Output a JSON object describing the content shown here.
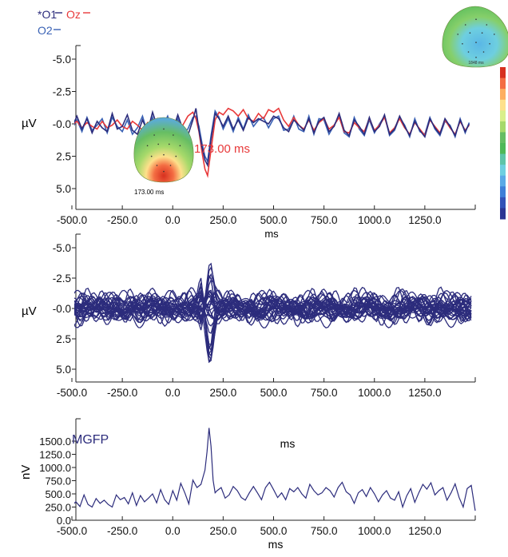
{
  "colors": {
    "O1": "#2c2c7c",
    "Oz": "#e8393a",
    "O2": "#3a62b5",
    "butterfly": "#2c2c7c",
    "mgfp": "#2c2c7c",
    "axis": "#222222",
    "scale": [
      "#d7301f",
      "#f46d43",
      "#fdae61",
      "#fee08b",
      "#d9ef8b",
      "#a6d96a",
      "#66bd63",
      "#4fb858",
      "#5ec4a8",
      "#6ecfe0",
      "#5aa9e6",
      "#3f7fd8",
      "#3352b8",
      "#2c3594"
    ]
  },
  "legend": {
    "o1": "*O1",
    "oz": "Oz",
    "o2": "O2"
  },
  "topomaps": {
    "small_label": "1848 ms",
    "peak_label": "173.00 ms"
  },
  "chart_data": [
    {
      "type": "line",
      "panel": "channels",
      "xlabel": "ms",
      "ylabel": "µV",
      "x_ticks": [
        "-500.0",
        "-250.0",
        "0.0",
        "250.0",
        "500.0",
        "750.0",
        "1000.0",
        "1250.0"
      ],
      "x_tick_values": [
        -500,
        -250,
        0,
        250,
        500,
        750,
        1000,
        1250
      ],
      "y_ticks": [
        "-5.0",
        "-2.5",
        "-0.0",
        "2.5",
        "5.0"
      ],
      "y_tick_values": [
        -5,
        -2.5,
        0,
        2.5,
        5
      ],
      "xlim": [
        -500,
        1480
      ],
      "ylim": [
        -5,
        5
      ],
      "y_inverted": false,
      "annotation": "173.00 ms",
      "annotation_x": 173,
      "series": [
        {
          "name": "O1",
          "x": [
            -500,
            -475,
            -450,
            -425,
            -400,
            -375,
            -350,
            -325,
            -300,
            -275,
            -250,
            -225,
            -200,
            -175,
            -150,
            -125,
            -100,
            -75,
            -50,
            -25,
            0,
            25,
            50,
            75,
            100,
            115,
            130,
            145,
            160,
            173,
            190,
            210,
            230,
            250,
            275,
            300,
            325,
            350,
            375,
            400,
            425,
            450,
            475,
            500,
            525,
            550,
            575,
            600,
            625,
            650,
            675,
            700,
            725,
            750,
            775,
            800,
            825,
            850,
            875,
            900,
            925,
            950,
            975,
            1000,
            1025,
            1050,
            1075,
            1100,
            1125,
            1150,
            1175,
            1200,
            1225,
            1250,
            1275,
            1300,
            1325,
            1350,
            1375,
            1400,
            1425,
            1450,
            1470
          ],
          "values": [
            0.3,
            -0.6,
            0.4,
            -0.4,
            0.7,
            -0.2,
            0.3,
            0.6,
            -0.8,
            0.4,
            0.2,
            -0.7,
            0.5,
            0.8,
            -0.3,
            0.6,
            -0.9,
            0.3,
            0.7,
            -0.4,
            0.5,
            -0.7,
            0.4,
            0.9,
            -0.3,
            -1.2,
            0.5,
            1.8,
            2.8,
            3.2,
            1.2,
            -0.8,
            -0.4,
            0.2,
            -0.6,
            0.4,
            -0.3,
            0.5,
            -0.5,
            -0.1,
            -0.4,
            -0.2,
            0.0,
            -0.6,
            -0.4,
            0.3,
            0.6,
            -0.3,
            0.1,
            0.5,
            -0.4,
            0.7,
            -0.2,
            -0.5,
            0.6,
            0.2,
            -0.8,
            0.5,
            0.9,
            -0.3,
            0.2,
            0.8,
            -0.5,
            0.6,
            0.2,
            -0.7,
            0.8,
            0.4,
            -0.6,
            0.2,
            0.9,
            -0.2,
            0.5,
            1.0,
            -0.4,
            0.3,
            0.8,
            -0.4,
            0.2,
            0.9,
            -0.3,
            0.6,
            0.0
          ]
        },
        {
          "name": "Oz",
          "x": [
            -500,
            -475,
            -450,
            -425,
            -400,
            -375,
            -350,
            -325,
            -300,
            -275,
            -250,
            -225,
            -200,
            -175,
            -150,
            -125,
            -100,
            -75,
            -50,
            -25,
            0,
            25,
            50,
            75,
            100,
            115,
            130,
            145,
            160,
            173,
            190,
            210,
            230,
            250,
            275,
            300,
            325,
            350,
            375,
            400,
            425,
            450,
            475,
            500,
            525,
            550,
            575,
            600,
            625,
            650,
            675,
            700,
            725,
            750,
            775,
            800,
            825,
            850,
            875,
            900,
            925,
            950,
            975,
            1000,
            1025,
            1050,
            1075,
            1100,
            1125,
            1150,
            1175,
            1200,
            1225,
            1250,
            1275,
            1300,
            1325,
            1350,
            1375,
            1400,
            1425,
            1450,
            1470
          ],
          "values": [
            0.1,
            -0.2,
            0.3,
            -0.1,
            0.2,
            0.4,
            -0.2,
            0.3,
            0.1,
            -0.3,
            0.2,
            0.4,
            -0.2,
            0.1,
            0.5,
            -0.1,
            0.2,
            -0.4,
            0.3,
            0.1,
            -0.3,
            0.2,
            0.1,
            -0.6,
            -0.9,
            -0.4,
            0.6,
            2.2,
            3.5,
            4.0,
            2.0,
            -0.3,
            -0.9,
            -0.7,
            -1.2,
            -1.0,
            -0.6,
            -1.1,
            -0.4,
            -0.2,
            -0.8,
            -0.4,
            -1.1,
            -0.9,
            -1.2,
            -0.3,
            0.2,
            -0.5,
            0.1,
            0.4,
            -0.3,
            0.5,
            -0.1,
            -0.4,
            0.4,
            0.1,
            -0.5,
            0.6,
            0.7,
            -0.1,
            0.3,
            0.6,
            -0.4,
            0.5,
            0.1,
            -0.5,
            0.7,
            0.3,
            -0.4,
            0.3,
            0.8,
            -0.1,
            0.4,
            0.9,
            -0.3,
            0.2,
            0.7,
            -0.3,
            0.3,
            0.8,
            -0.2,
            0.5,
            0.1
          ]
        },
        {
          "name": "O2",
          "x": [
            -500,
            -475,
            -450,
            -425,
            -400,
            -375,
            -350,
            -325,
            -300,
            -275,
            -250,
            -225,
            -200,
            -175,
            -150,
            -125,
            -100,
            -75,
            -50,
            -25,
            0,
            25,
            50,
            75,
            100,
            115,
            130,
            145,
            160,
            173,
            190,
            210,
            230,
            250,
            275,
            300,
            325,
            350,
            375,
            400,
            425,
            450,
            475,
            500,
            525,
            550,
            575,
            600,
            625,
            650,
            675,
            700,
            725,
            750,
            775,
            800,
            825,
            850,
            875,
            900,
            925,
            950,
            975,
            1000,
            1025,
            1050,
            1075,
            1100,
            1125,
            1150,
            1175,
            1200,
            1225,
            1250,
            1275,
            1300,
            1325,
            1350,
            1375,
            1400,
            1425,
            1450,
            1470
          ],
          "values": [
            0.4,
            -0.3,
            0.6,
            -0.5,
            0.5,
            0.1,
            -0.4,
            0.7,
            -0.5,
            0.2,
            0.6,
            -0.3,
            0.8,
            0.3,
            -0.6,
            0.7,
            -0.5,
            0.8,
            0.2,
            -0.6,
            0.6,
            -0.4,
            0.7,
            0.4,
            -0.5,
            -0.6,
            0.2,
            1.5,
            2.5,
            2.9,
            0.9,
            -1.0,
            -0.5,
            0.4,
            -0.4,
            0.6,
            -0.5,
            0.4,
            -0.7,
            0.2,
            -0.3,
            -0.5,
            0.3,
            -0.4,
            -0.6,
            0.5,
            0.4,
            -0.6,
            0.4,
            0.6,
            -0.6,
            0.8,
            -0.4,
            -0.3,
            0.8,
            0.1,
            -0.6,
            0.7,
            1.0,
            -0.5,
            0.4,
            0.9,
            -0.3,
            0.7,
            0.0,
            -0.6,
            0.9,
            0.5,
            -0.5,
            0.1,
            1.0,
            -0.4,
            0.6,
            0.8,
            -0.5,
            0.4,
            0.9,
            -0.2,
            0.1,
            1.0,
            -0.4,
            0.7,
            -0.1
          ]
        }
      ]
    },
    {
      "type": "line",
      "panel": "butterfly",
      "xlabel": "",
      "ylabel": "µV",
      "x_ticks": [
        "-500.0",
        "-250.0",
        "0.0",
        "250.0",
        "500.0",
        "750.0",
        "1000.0",
        "1250.0"
      ],
      "x_tick_values": [
        -500,
        -250,
        0,
        250,
        500,
        750,
        1000,
        1250
      ],
      "y_ticks": [
        "-5.0",
        "-2.5",
        "-0.0",
        "2.5",
        "5.0"
      ],
      "y_tick_values": [
        -5,
        -2.5,
        0,
        2.5,
        5
      ],
      "xlim": [
        -500,
        1500
      ],
      "ylim": [
        -5,
        5
      ],
      "series_count": 32,
      "x_step": 10,
      "envelope_note": "overlaid channel traces with largest deflection near 180 ms (range about -3 to +4 µV)"
    },
    {
      "type": "line",
      "panel": "mgfp",
      "title": "MGFP",
      "xlabel": "ms",
      "ylabel": "nV",
      "annotation": "ms",
      "x_ticks": [
        "-500.0",
        "-250.0",
        "0.0",
        "250.0",
        "500.0",
        "750.0",
        "1000.0",
        "1250.0"
      ],
      "x_tick_values": [
        -500,
        -250,
        0,
        250,
        500,
        750,
        1000,
        1250
      ],
      "y_ticks": [
        "1500.0",
        "1250.0",
        "1000.0",
        "750.0",
        "500.0",
        "250.0",
        "0.0"
      ],
      "y_tick_values": [
        1500,
        1250,
        1000,
        750,
        500,
        250,
        0
      ],
      "xlim": [
        -500,
        1500
      ],
      "ylim": [
        0,
        1750
      ],
      "series": [
        {
          "name": "MGFP",
          "x": [
            -500,
            -480,
            -460,
            -440,
            -420,
            -400,
            -380,
            -360,
            -340,
            -320,
            -300,
            -280,
            -260,
            -240,
            -220,
            -200,
            -180,
            -160,
            -140,
            -120,
            -100,
            -80,
            -60,
            -40,
            -20,
            0,
            20,
            40,
            60,
            80,
            100,
            120,
            140,
            160,
            170,
            180,
            190,
            200,
            210,
            220,
            240,
            260,
            280,
            300,
            320,
            340,
            360,
            380,
            400,
            420,
            440,
            460,
            480,
            500,
            520,
            540,
            560,
            580,
            600,
            620,
            640,
            660,
            680,
            700,
            720,
            740,
            760,
            780,
            800,
            820,
            840,
            860,
            880,
            900,
            920,
            940,
            960,
            980,
            1000,
            1020,
            1040,
            1060,
            1080,
            1100,
            1120,
            1140,
            1160,
            1180,
            1200,
            1220,
            1240,
            1260,
            1280,
            1300,
            1320,
            1340,
            1360,
            1380,
            1400,
            1420,
            1440,
            1460,
            1480,
            1500
          ],
          "values": [
            280,
            350,
            260,
            480,
            300,
            250,
            410,
            320,
            380,
            300,
            250,
            480,
            390,
            430,
            310,
            520,
            280,
            470,
            350,
            420,
            500,
            330,
            580,
            390,
            300,
            560,
            380,
            700,
            520,
            310,
            760,
            620,
            680,
            950,
            1300,
            1750,
            1400,
            760,
            520,
            560,
            620,
            420,
            480,
            640,
            560,
            430,
            380,
            520,
            640,
            520,
            390,
            620,
            720,
            580,
            430,
            520,
            390,
            600,
            540,
            620,
            500,
            420,
            680,
            560,
            480,
            520,
            620,
            560,
            440,
            620,
            720,
            540,
            480,
            320,
            520,
            580,
            450,
            620,
            500,
            350,
            480,
            560,
            420,
            380,
            540,
            250,
            460,
            600,
            340,
            520,
            680,
            590,
            710,
            480,
            560,
            620,
            380,
            520,
            690,
            430,
            250,
            600,
            660,
            180
          ]
        }
      ]
    }
  ]
}
